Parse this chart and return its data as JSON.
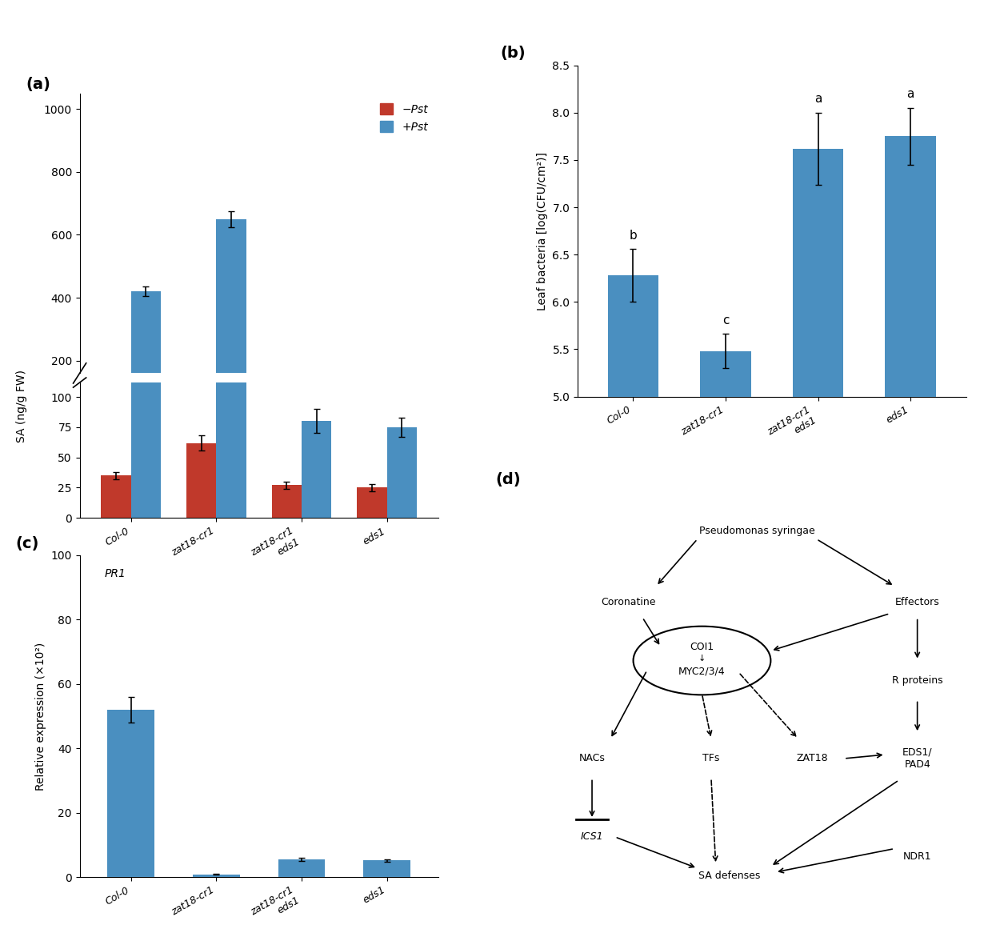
{
  "panel_a": {
    "categories": [
      "Col-0",
      "zat18-cr1",
      "zat18-cr1 eds1",
      "eds1"
    ],
    "minus_pst": [
      35,
      62,
      27,
      25
    ],
    "minus_pst_err": [
      3,
      6,
      3,
      3
    ],
    "plus_pst": [
      420,
      650,
      80,
      75
    ],
    "plus_pst_err": [
      15,
      25,
      10,
      8
    ],
    "ylabel": "SA (ng/g FW)",
    "yticks_upper": [
      200,
      400,
      600,
      800,
      1000
    ],
    "yticks_lower": [
      0,
      25,
      50,
      75,
      100
    ],
    "bar_color_minus": "#C0392B",
    "bar_color_plus": "#4A8FC0",
    "ylim_upper": [
      160,
      1050
    ],
    "ylim_lower": [
      0,
      112
    ]
  },
  "panel_b": {
    "categories": [
      "Col-0",
      "zat18-cr1",
      "zat18-cr1 eds1",
      "eds1"
    ],
    "values": [
      6.28,
      5.48,
      7.62,
      7.75
    ],
    "errors": [
      0.28,
      0.18,
      0.38,
      0.3
    ],
    "letters": [
      "b",
      "c",
      "a",
      "a"
    ],
    "ylabel": "Leaf bacteria [log(CFU/cm²)]",
    "ylim": [
      5.0,
      8.5
    ],
    "yticks": [
      5.0,
      5.5,
      6.0,
      6.5,
      7.0,
      7.5,
      8.0,
      8.5
    ],
    "bar_color": "#4A8FC0"
  },
  "panel_c": {
    "categories": [
      "Col-0",
      "zat18-cr1",
      "zat18-cr1 eds1",
      "eds1"
    ],
    "values": [
      52,
      0.8,
      5.5,
      5.2
    ],
    "errors": [
      4,
      0.15,
      0.4,
      0.4
    ],
    "ylabel": "Relative expression (×10²)",
    "gene": "PR1",
    "ylim": [
      0,
      100
    ],
    "yticks": [
      0,
      20,
      40,
      60,
      80,
      100
    ],
    "bar_color": "#4A8FC0"
  },
  "legend_minus_label": "−Pst",
  "legend_plus_label": "+Pst"
}
